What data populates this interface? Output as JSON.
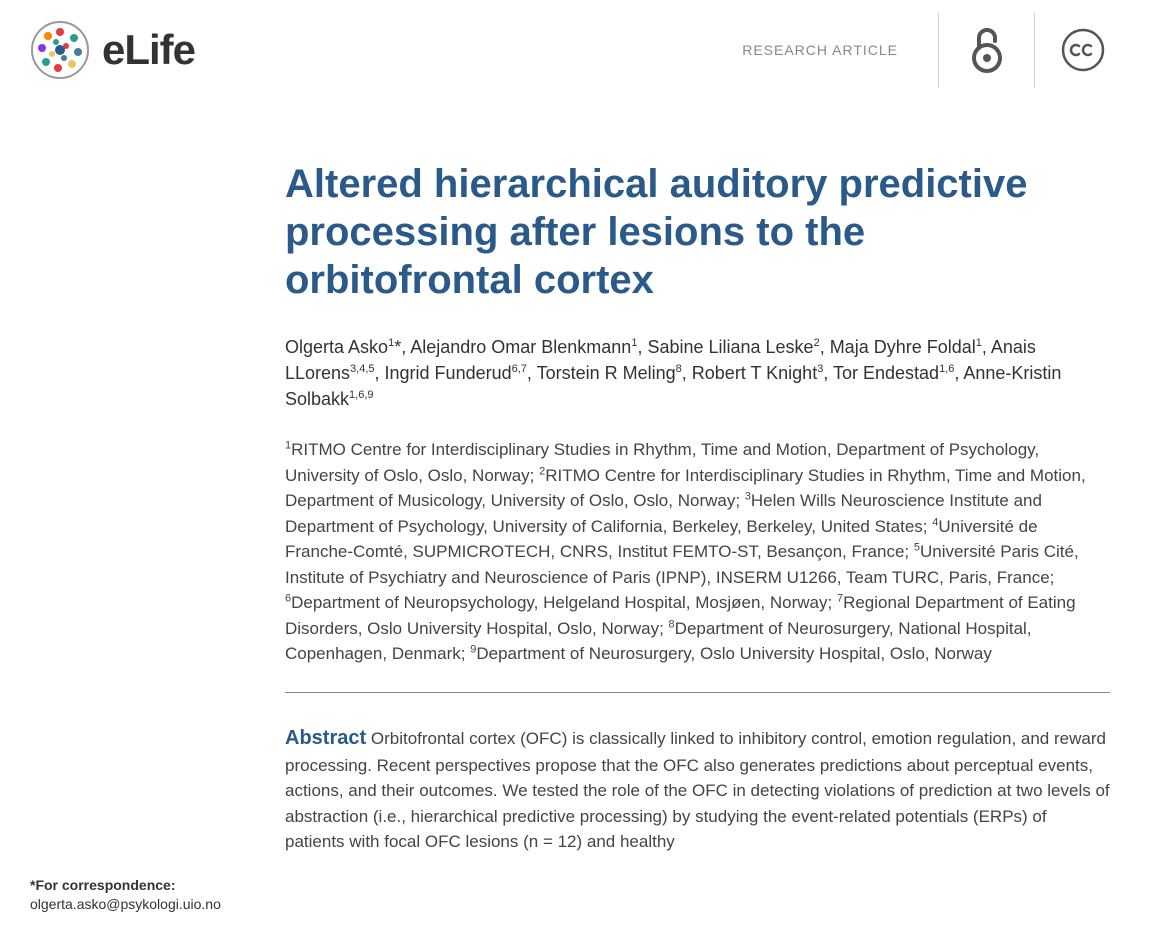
{
  "header": {
    "journal_name": "eLife",
    "article_type": "RESEARCH ARTICLE"
  },
  "title": "Altered hierarchical auditory predictive processing after lesions to the orbitofrontal cortex",
  "authors_html": "Olgerta Asko<sup>1</sup>*, Alejandro Omar Blenkmann<sup>1</sup>, Sabine Liliana Leske<sup>2</sup>, Maja Dyhre Foldal<sup>1</sup>, Anais LLorens<sup>3,4,5</sup>, Ingrid Funderud<sup>6,7</sup>, Torstein R Meling<sup>8</sup>, Robert T Knight<sup>3</sup>, Tor Endestad<sup>1,6</sup>, Anne-Kristin Solbakk<sup>1,6,9</sup>",
  "affiliations_html": "<sup>1</sup>RITMO Centre for Interdisciplinary Studies in Rhythm, Time and Motion, Department of Psychology, University of Oslo, Oslo, Norway; <sup>2</sup>RITMO Centre for Interdisciplinary Studies in Rhythm, Time and Motion, Department of Musicology, University of Oslo, Oslo, Norway; <sup>3</sup>Helen Wills Neuroscience Institute and Department of Psychology, University of California, Berkeley, Berkeley, United States; <sup>4</sup>Université de Franche-Comté, SUPMICROTECH, CNRS, Institut FEMTO-ST, Besançon, France; <sup>5</sup>Université Paris Cité, Institute of Psychiatry and Neuroscience of Paris (IPNP), INSERM U1266, Team TURC, Paris, France; <sup>6</sup>Department of Neuropsychology, Helgeland Hospital, Mosjøen, Norway; <sup>7</sup>Regional Department of Eating Disorders, Oslo University Hospital, Oslo, Norway; <sup>8</sup>Department of Neurosurgery, National Hospital, Copenhagen, Denmark; <sup>9</sup>Department of Neurosurgery, Oslo University Hospital, Oslo, Norway",
  "abstract": {
    "label": "Abstract",
    "text": " Orbitofrontal cortex (OFC) is classically linked to inhibitory control, emotion regulation, and reward processing. Recent perspectives propose that the OFC also generates predictions about perceptual events, actions, and their outcomes. We tested the role of the OFC in detecting violations of prediction at two levels of abstraction (i.e., hierarchical predictive processing) by studying the event-related potentials (ERPs) of patients with focal OFC lesions (n = 12) and healthy"
  },
  "correspondence": {
    "label": "*For correspondence:",
    "email": "olgerta.asko@psykologi.uio.no"
  },
  "colors": {
    "title": "#2a5a8a",
    "body_text": "#444444",
    "header_text": "#888888",
    "rule": "#888888"
  }
}
